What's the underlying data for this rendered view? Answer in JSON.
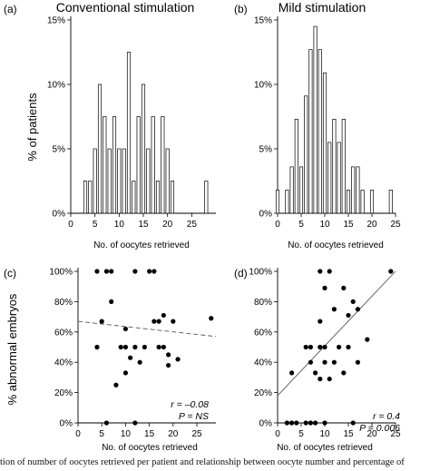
{
  "shared": {
    "ylabel_top": "% of patients",
    "ylabel_bottom": "% abnormal embryos"
  },
  "chart_data": [
    {
      "type": "bar",
      "panel": "(a)",
      "title": "Conventional stimulation",
      "xlabel": "No. of oocytes retrieved",
      "ylabel": "% of patients",
      "xlim": [
        0,
        30
      ],
      "ylim": [
        0,
        15
      ],
      "xticks": [
        0,
        5,
        10,
        15,
        20,
        25
      ],
      "yticks": [
        0,
        5,
        10,
        15
      ],
      "ytick_labels": [
        "0%",
        "5%",
        "10%",
        "15%"
      ],
      "x": [
        3,
        4,
        5,
        6,
        7,
        8,
        9,
        10,
        11,
        12,
        13,
        14,
        15,
        16,
        17,
        18,
        19,
        20,
        21,
        22,
        23,
        24,
        25,
        26,
        27,
        28
      ],
      "values": [
        2.5,
        2.5,
        5,
        10,
        7.5,
        5,
        7.5,
        5,
        5,
        12.5,
        2.5,
        7.5,
        10,
        5,
        7.5,
        2.5,
        7.5,
        5,
        2.5,
        0,
        0,
        0,
        0,
        0,
        0,
        2.5
      ]
    },
    {
      "type": "bar",
      "panel": "(b)",
      "title": "Mild stimulation",
      "xlabel": "No. of oocytes retrieved",
      "ylabel": "% of patients",
      "xlim": [
        0,
        25
      ],
      "ylim": [
        0,
        15
      ],
      "xticks": [
        0,
        5,
        10,
        15,
        20,
        25
      ],
      "yticks": [
        0,
        5,
        10,
        15
      ],
      "ytick_labels": [
        "0%",
        "5%",
        "10%",
        "15%"
      ],
      "x": [
        0,
        1,
        2,
        3,
        4,
        5,
        6,
        7,
        8,
        9,
        10,
        11,
        12,
        13,
        14,
        15,
        16,
        17,
        18,
        19,
        20,
        21,
        22,
        23,
        24,
        25
      ],
      "values": [
        1.8,
        0,
        1.8,
        3.6,
        7.3,
        3.6,
        9.1,
        12.7,
        14.5,
        12.7,
        10.9,
        5.5,
        7.3,
        5.5,
        7.3,
        1.8,
        3.6,
        3.6,
        1.8,
        0,
        1.8,
        0,
        0,
        0,
        1.8,
        0
      ]
    },
    {
      "type": "scatter",
      "panel": "(c)",
      "xlabel": "No. of oocytes retrieved",
      "ylabel": "% abnormal embryos",
      "xlim": [
        0,
        29
      ],
      "ylim": [
        0,
        100
      ],
      "xticks": [
        0,
        5,
        10,
        15,
        20,
        25
      ],
      "yticks": [
        0,
        20,
        40,
        60,
        80,
        100
      ],
      "ytick_labels": [
        "0%",
        "20%",
        "40%",
        "60%",
        "80%",
        "100%"
      ],
      "points": [
        [
          4,
          100
        ],
        [
          6,
          100
        ],
        [
          7,
          100
        ],
        [
          12,
          100
        ],
        [
          15,
          100
        ],
        [
          16,
          100
        ],
        [
          5,
          67
        ],
        [
          7,
          80
        ],
        [
          4,
          50
        ],
        [
          9,
          50
        ],
        [
          10,
          50
        ],
        [
          12,
          50
        ],
        [
          14,
          50
        ],
        [
          17,
          50
        ],
        [
          18,
          50
        ],
        [
          10,
          62
        ],
        [
          16,
          67
        ],
        [
          17,
          67
        ],
        [
          18,
          71
        ],
        [
          20,
          67
        ],
        [
          28,
          69
        ],
        [
          11,
          43
        ],
        [
          13,
          40
        ],
        [
          19,
          45
        ],
        [
          21,
          42
        ],
        [
          10,
          33
        ],
        [
          8,
          25
        ],
        [
          19,
          38
        ],
        [
          6,
          0
        ],
        [
          12,
          0
        ]
      ],
      "trendline": {
        "x": [
          0,
          29
        ],
        "y": [
          67,
          57
        ],
        "style": "dashed"
      },
      "annotation": {
        "r": "r = –0.08",
        "p": "P = NS"
      }
    },
    {
      "type": "scatter",
      "panel": "(d)",
      "xlabel": "No. of oocytes retrieved",
      "ylabel": "% abnormal embryos",
      "xlim": [
        0,
        25
      ],
      "ylim": [
        0,
        100
      ],
      "xticks": [
        0,
        5,
        10,
        15,
        20,
        25
      ],
      "yticks": [
        0,
        20,
        40,
        60,
        80,
        100
      ],
      "ytick_labels": [
        "0%",
        "20%",
        "40%",
        "60%",
        "80%",
        "100%"
      ],
      "points": [
        [
          9,
          100
        ],
        [
          11,
          100
        ],
        [
          24,
          100
        ],
        [
          10,
          89
        ],
        [
          14,
          89
        ],
        [
          16,
          80
        ],
        [
          12,
          75
        ],
        [
          17,
          75
        ],
        [
          15,
          71
        ],
        [
          9,
          67
        ],
        [
          6,
          50
        ],
        [
          7,
          50
        ],
        [
          9,
          50
        ],
        [
          10,
          50
        ],
        [
          13,
          50
        ],
        [
          15,
          50
        ],
        [
          19,
          55
        ],
        [
          7,
          40
        ],
        [
          10,
          40
        ],
        [
          12,
          40
        ],
        [
          11,
          29
        ],
        [
          17,
          40
        ],
        [
          3,
          33
        ],
        [
          8,
          33
        ],
        [
          9,
          29
        ],
        [
          14,
          33
        ],
        [
          2,
          0
        ],
        [
          3,
          0
        ],
        [
          4,
          0
        ],
        [
          6,
          0
        ],
        [
          7,
          0
        ],
        [
          8,
          0
        ],
        [
          10,
          0
        ],
        [
          16,
          0
        ]
      ],
      "trendline": {
        "x": [
          0,
          25
        ],
        "y": [
          18,
          100
        ],
        "style": "solid"
      },
      "annotation": {
        "r": "r = 0.4",
        "p": "P = 0.006"
      }
    }
  ]
}
